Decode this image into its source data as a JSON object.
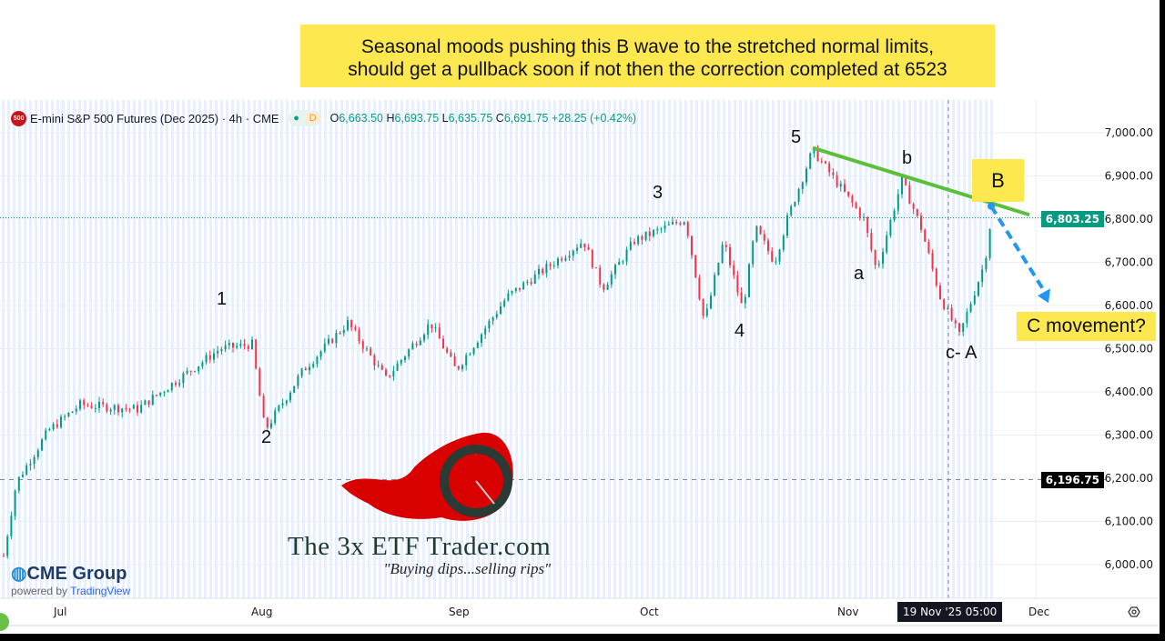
{
  "annotation": {
    "line1": "Seasonal moods pushing this B wave to the stretched normal limits,",
    "line2": "should get a pullback soon if not then the correction completed at 6523",
    "b_label": "B",
    "c_label": "C movement?"
  },
  "legend": {
    "symbol_badge": "500",
    "title": "E-mini S&P 500 Futures (Dec 2025) · 4h · CME",
    "d_label": "D",
    "o_label": "O",
    "o": "6,663.50",
    "h_label": "H",
    "h": "6,693.75",
    "l_label": "L",
    "l": "6,635.75",
    "c_label": "C",
    "c": "6,691.75",
    "change": "+28.25 (+0.42%)"
  },
  "waves": {
    "w1": "1",
    "w2": "2",
    "w3": "3",
    "w4": "4",
    "w5": "5",
    "wa": "a",
    "wb": "b",
    "wcA": "c- A"
  },
  "branding": {
    "cme": "CME Group",
    "powered_by": "powered by",
    "tradingview": "TradingView",
    "site": "The 3x ETF Trader.com",
    "slogan": "\"Buying dips...selling rips\""
  },
  "price_labels": {
    "last": "6,803.25",
    "marker": "6,196.75"
  },
  "crosshair_time": "19 Nov '25  05:00",
  "colors": {
    "up": "#089981",
    "down": "#f23645",
    "trend": "#5cbf3a",
    "arrow": "#2196f3",
    "note": "#fde84f",
    "last_price": "#089981"
  },
  "chart_data": {
    "type": "candlestick",
    "title": "E-mini S&P 500 Futures (Dec 2025) · 4h · CME",
    "ylim": [
      5950,
      7050
    ],
    "y_ticks": [
      "7,000.00",
      "6,900.00",
      "6,800.00",
      "6,700.00",
      "6,600.00",
      "6,500.00",
      "6,400.00",
      "6,300.00",
      "6,200.00",
      "6,100.00",
      "6,000.00"
    ],
    "y_tick_values": [
      7000,
      6900,
      6800,
      6700,
      6600,
      6500,
      6400,
      6300,
      6200,
      6100,
      6000
    ],
    "x_ticks": [
      "Jul",
      "Aug",
      "Sep",
      "Oct",
      "Nov",
      "Dec"
    ],
    "x_tick_days": [
      0,
      31,
      62,
      92,
      123,
      153
    ],
    "xlim_days": [
      -9,
      172
    ],
    "path_days": [
      -9,
      -7,
      -2,
      3,
      12,
      25,
      30,
      32,
      38,
      45,
      51,
      58,
      62,
      70,
      82,
      85,
      90,
      98,
      101,
      104,
      107,
      109,
      112,
      114,
      118,
      126,
      128,
      132,
      135,
      138,
      141,
      145,
      146
    ],
    "path_prices": [
      6020,
      6190,
      6310,
      6370,
      6360,
      6500,
      6510,
      6310,
      6450,
      6560,
      6430,
      6560,
      6450,
      6620,
      6750,
      6640,
      6750,
      6800,
      6560,
      6750,
      6590,
      6780,
      6700,
      6800,
      6960,
      6800,
      6680,
      6890,
      6780,
      6620,
      6530,
      6700,
      6803
    ],
    "last_price": 6803.25,
    "marker_price": 6196.75,
    "trendline": {
      "from": {
        "day": 118,
        "price": 6965
      },
      "to": {
        "day": 152,
        "price": 6810
      }
    },
    "projection": {
      "from": {
        "day": 146,
        "price": 6830
      },
      "to": {
        "day": 155,
        "price": 6610
      }
    }
  }
}
